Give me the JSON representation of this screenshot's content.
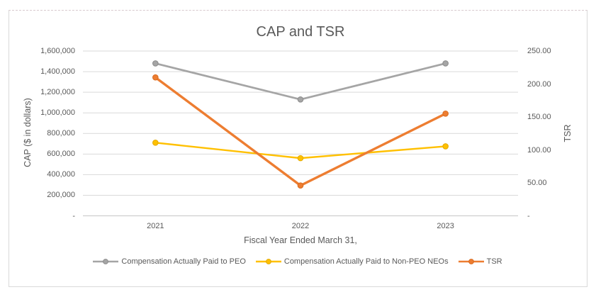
{
  "chart_data": {
    "type": "line",
    "title": "CAP and TSR",
    "categories": [
      "2021",
      "2022",
      "2023"
    ],
    "series": [
      {
        "name": "Compensation Actually Paid to PEO",
        "axis": "left",
        "color": "#A5A5A5",
        "marker_border": "#8C8C8C",
        "line_width": 2.7,
        "values": [
          1480000,
          1130000,
          1480000
        ]
      },
      {
        "name": "Compensation Actually Paid to Non-PEO NEOs",
        "axis": "left",
        "color": "#FFC000",
        "marker_border": "#E3AA00",
        "line_width": 2.4,
        "values": [
          710000,
          560000,
          675000
        ]
      },
      {
        "name": "TSR",
        "axis": "right",
        "color": "#ED7D31",
        "marker_border": "#D96B1F",
        "line_width": 3.4,
        "values": [
          210,
          46,
          155
        ]
      }
    ],
    "xlabel": "Fiscal Year Ended March 31,",
    "ylabel_left": "CAP ($ in dollars)",
    "ylabel_right": "TSR",
    "ylim_left": [
      0,
      1600000
    ],
    "ylim_right": [
      0,
      250
    ],
    "y_left_ticks": [
      "1,600,000",
      "1,400,000",
      "1,200,000",
      "1,000,000",
      "800,000",
      "600,000",
      "400,000",
      "200,000",
      "-"
    ],
    "y_right_ticks": [
      "250.00",
      "200.00",
      "150.00",
      "100.00",
      "50.00",
      "-"
    ],
    "grid": true,
    "legend_position": "bottom"
  },
  "colors": {
    "gridline": "#D9D9D9",
    "axis_line": "#C6C6C6",
    "text": "#595959",
    "frame_border": "#D9D9D9",
    "background": "#FFFFFF"
  }
}
